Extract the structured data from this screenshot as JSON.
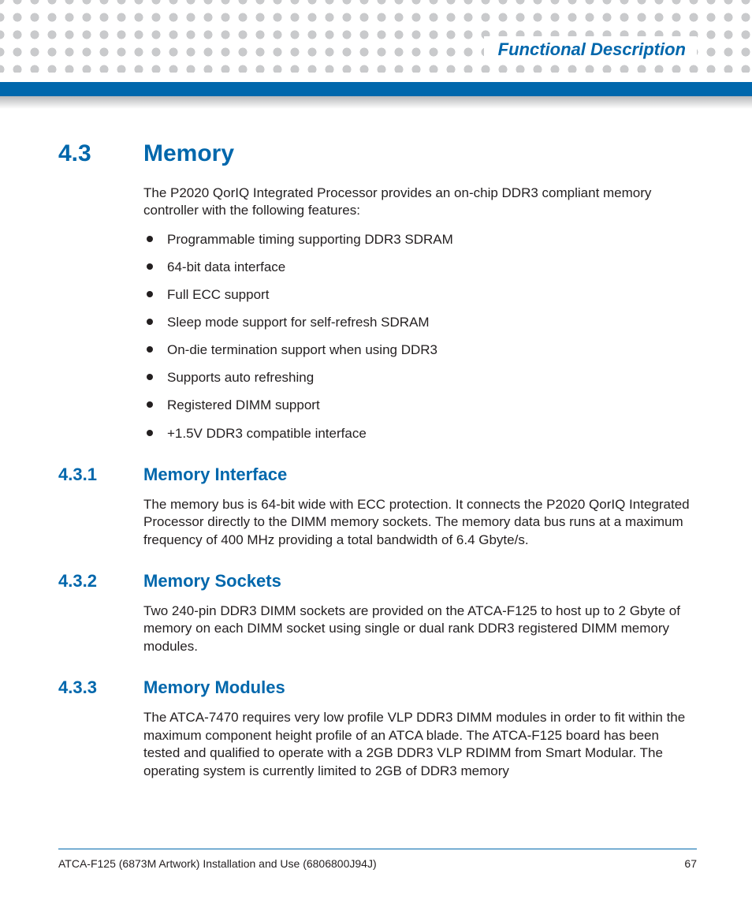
{
  "header": {
    "chapter_title": "Functional Description",
    "accent_color": "#0067ac",
    "dot_color": "#c9cacc"
  },
  "section": {
    "number": "4.3",
    "title": "Memory",
    "intro": "The P2020 QorIQ Integrated Processor provides an on-chip DDR3 compliant memory controller with the following features:",
    "features": [
      "Programmable timing supporting DDR3 SDRAM",
      "64-bit data interface",
      "Full ECC support",
      "Sleep mode support for self-refresh SDRAM",
      "On-die termination support when using DDR3",
      "Supports auto refreshing",
      "Registered DIMM support",
      "+1.5V DDR3 compatible interface"
    ],
    "subsections": [
      {
        "number": "4.3.1",
        "title": "Memory Interface",
        "body": "The memory bus is 64-bit wide with ECC protection. It connects the P2020 QorIQ Integrated Processor directly to the DIMM memory sockets. The memory data bus runs at a maximum frequency of 400 MHz providing a total bandwidth of 6.4 Gbyte/s."
      },
      {
        "number": "4.3.2",
        "title": "Memory Sockets",
        "body": "Two 240-pin DDR3 DIMM sockets are provided on the ATCA-F125 to host up to 2 Gbyte of memory on each DIMM socket using single or dual rank DDR3 registered DIMM memory modules."
      },
      {
        "number": "4.3.3",
        "title": "Memory Modules",
        "body": "The ATCA-7470 requires very low profile VLP DDR3 DIMM modules in order to fit within the maximum component height profile of an ATCA blade. The ATCA-F125 board has been tested and qualified to operate with a 2GB DDR3 VLP RDIMM from Smart Modular. The operating system is currently limited to 2GB of DDR3 memory"
      }
    ]
  },
  "footer": {
    "doc_title": "ATCA-F125 (6873M Artwork) Installation and Use (6806800J94J)",
    "page_number": "67"
  }
}
